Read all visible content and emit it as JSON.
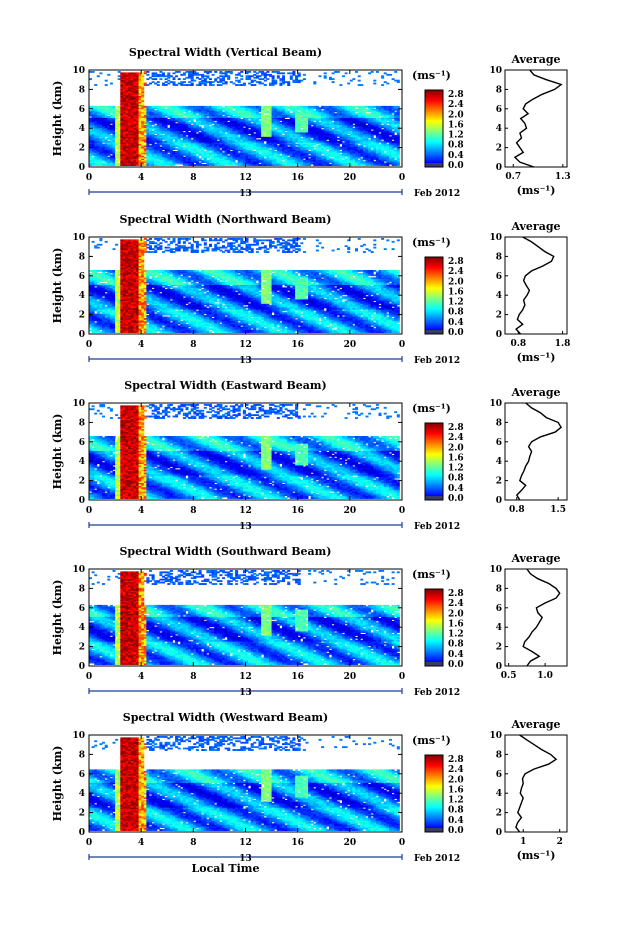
{
  "figure": {
    "xlabel": "Local Time",
    "date_label": "Feb 2012",
    "x_ticks": [
      "0",
      "4",
      "8",
      "12",
      "16",
      "20",
      "0"
    ],
    "day_label": "13",
    "y_ticks": [
      "0",
      "2",
      "4",
      "6",
      "8",
      "10"
    ],
    "ylabel": "Height (km)",
    "unit_label": "(ms⁻¹)",
    "colorbar_ticks": [
      "0.0",
      "0.4",
      "0.8",
      "1.2",
      "1.6",
      "2.0",
      "2.4",
      "2.8"
    ],
    "avg_title": "Average"
  },
  "chart_data": [
    {
      "type": "heatmap",
      "title": "Spectral Width (Vertical Beam)",
      "xlabel": "",
      "ylabel": "Height (km)",
      "xlim": [
        0,
        24
      ],
      "ylim": [
        0,
        10
      ],
      "zlim": [
        0,
        3.0
      ],
      "top_echo_km": 6.3,
      "average_profile": {
        "xlabel": "(ms⁻¹)",
        "xlim": [
          0.6,
          1.35
        ],
        "xticks": [
          "0.7",
          "1.3"
        ],
        "height_km": [
          0,
          0.5,
          1,
          1.5,
          2,
          2.5,
          3,
          3.5,
          4,
          4.5,
          5,
          5.5,
          6,
          6.5,
          7,
          7.5,
          8,
          8.5,
          9,
          9.5,
          10
        ],
        "value": [
          0.95,
          0.78,
          0.72,
          0.82,
          0.78,
          0.74,
          0.8,
          0.78,
          0.86,
          0.84,
          0.79,
          0.88,
          0.82,
          0.85,
          0.94,
          1.05,
          1.2,
          1.28,
          1.1,
          0.95,
          0.9
        ]
      }
    },
    {
      "type": "heatmap",
      "title": "Spectral Width (Northward Beam)",
      "xlabel": "",
      "ylabel": "Height (km)",
      "xlim": [
        0,
        24
      ],
      "ylim": [
        0,
        10
      ],
      "zlim": [
        0,
        3.0
      ],
      "top_echo_km": 6.5,
      "average_profile": {
        "xlabel": "(ms⁻¹)",
        "xlim": [
          0.5,
          1.9
        ],
        "xticks": [
          "0.8",
          "1.8"
        ],
        "height_km": [
          0,
          0.5,
          1,
          1.5,
          2,
          2.5,
          3,
          3.5,
          4,
          4.5,
          5,
          5.5,
          6,
          6.5,
          7,
          7.5,
          8,
          8.5,
          9,
          9.5,
          10
        ],
        "value": [
          0.85,
          0.75,
          0.9,
          0.78,
          0.82,
          0.9,
          0.95,
          0.92,
          1.0,
          1.05,
          0.98,
          0.92,
          0.96,
          1.1,
          1.35,
          1.55,
          1.6,
          1.4,
          1.25,
          1.1,
          0.9
        ]
      }
    },
    {
      "type": "heatmap",
      "title": "Spectral Width (Eastward Beam)",
      "xlabel": "",
      "ylabel": "Height (km)",
      "xlim": [
        0,
        24
      ],
      "ylim": [
        0,
        10
      ],
      "zlim": [
        0,
        3.0
      ],
      "top_echo_km": 6.6,
      "average_profile": {
        "xlabel": "",
        "xlim": [
          0.6,
          1.65
        ],
        "xticks": [
          "0.8",
          "1.5"
        ],
        "height_km": [
          0,
          0.5,
          1,
          1.5,
          2,
          2.5,
          3,
          3.5,
          4,
          4.5,
          5,
          5.5,
          6,
          6.5,
          7,
          7.5,
          8,
          8.5,
          9,
          9.5,
          10
        ],
        "value": [
          0.85,
          0.8,
          0.88,
          0.95,
          0.85,
          0.88,
          0.92,
          0.95,
          1.0,
          1.02,
          1.05,
          1.0,
          1.05,
          1.2,
          1.45,
          1.55,
          1.5,
          1.3,
          1.2,
          1.05,
          0.95
        ]
      }
    },
    {
      "type": "heatmap",
      "title": "Spectral Width (Southward Beam)",
      "xlabel": "",
      "ylabel": "Height (km)",
      "xlim": [
        0,
        24
      ],
      "ylim": [
        0,
        10
      ],
      "zlim": [
        0,
        3.0
      ],
      "top_echo_km": 6.2,
      "average_profile": {
        "xlabel": "",
        "xlim": [
          0.45,
          1.3
        ],
        "xticks": [
          "0.5",
          "1.0"
        ],
        "height_km": [
          0,
          0.5,
          1,
          1.5,
          2,
          2.5,
          3,
          3.5,
          4,
          4.5,
          5,
          5.5,
          6,
          6.5,
          7,
          7.5,
          8,
          8.5,
          9,
          9.5,
          10
        ],
        "value": [
          0.75,
          0.8,
          0.92,
          0.82,
          0.7,
          0.72,
          0.78,
          0.82,
          0.88,
          0.92,
          0.96,
          0.9,
          0.88,
          1.0,
          1.15,
          1.2,
          1.15,
          1.05,
          0.9,
          0.8,
          0.75
        ]
      }
    },
    {
      "type": "heatmap",
      "title": "Spectral Width (Westward Beam)",
      "xlabel": "Local Time",
      "ylabel": "Height (km)",
      "xlim": [
        0,
        24
      ],
      "ylim": [
        0,
        10
      ],
      "zlim": [
        0,
        3.0
      ],
      "top_echo_km": 6.4,
      "average_profile": {
        "xlabel": "(ms⁻¹)",
        "xlim": [
          0.5,
          2.2
        ],
        "xticks": [
          "1",
          "2"
        ],
        "height_km": [
          0,
          0.5,
          1,
          1.5,
          2,
          2.5,
          3,
          3.5,
          4,
          4.5,
          5,
          5.5,
          6,
          6.5,
          7,
          7.5,
          8,
          8.5,
          9,
          9.5,
          10
        ],
        "value": [
          0.9,
          0.8,
          0.85,
          0.95,
          0.85,
          0.9,
          0.95,
          1.0,
          0.92,
          0.95,
          1.0,
          0.98,
          1.05,
          1.3,
          1.7,
          1.9,
          1.75,
          1.5,
          1.3,
          1.1,
          0.9
        ]
      }
    }
  ]
}
